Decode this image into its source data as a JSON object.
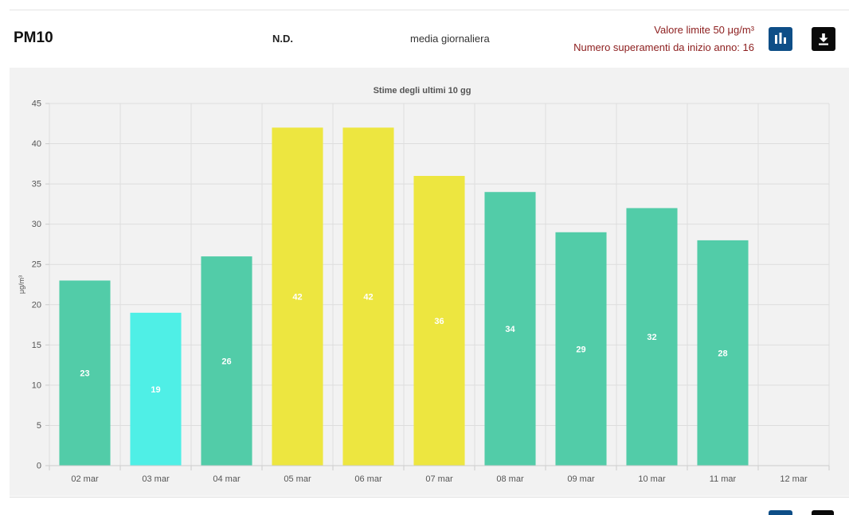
{
  "header": {
    "pollutant": "PM10",
    "status": "N.D.",
    "period": "media giornaliera",
    "limit_text": "Valore limite 50 μg/m³",
    "exceedances_text": "Numero superamenti da inizio anno: 16"
  },
  "icons": {
    "chart": "bar-chart-icon",
    "download": "download-icon"
  },
  "colors": {
    "chart_button": "#0e4e87",
    "download_button": "#0a0a0a",
    "limit_text": "#8c1d1d",
    "bar_green": "#52cca8",
    "bar_cyan": "#4fefe6",
    "bar_yellow": "#ede640"
  },
  "chart_data": {
    "type": "bar",
    "title": "Stime degli ultimi 10 gg",
    "ylabel": "μg/m³",
    "xlabel": "",
    "ylim": [
      0,
      45
    ],
    "yticks": [
      0,
      5,
      10,
      15,
      20,
      25,
      30,
      35,
      40,
      45
    ],
    "grid": true,
    "categories": [
      "02 mar",
      "03 mar",
      "04 mar",
      "05 mar",
      "06 mar",
      "07 mar",
      "08 mar",
      "09 mar",
      "10 mar",
      "11 mar",
      "12 mar"
    ],
    "values": [
      23,
      19,
      26,
      42,
      42,
      36,
      34,
      29,
      32,
      28,
      null
    ],
    "bar_colors": [
      "#52cca8",
      "#4fefe6",
      "#52cca8",
      "#ede640",
      "#ede640",
      "#ede640",
      "#52cca8",
      "#52cca8",
      "#52cca8",
      "#52cca8",
      null
    ],
    "data_labels": [
      "23",
      "19",
      "26",
      "42",
      "42",
      "36",
      "34",
      "29",
      "32",
      "28",
      ""
    ]
  }
}
